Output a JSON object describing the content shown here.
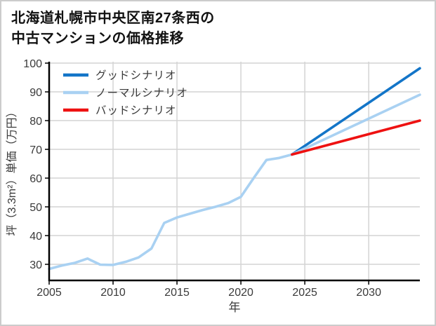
{
  "title": {
    "line1": "北海道札幌市中央区南27条西の",
    "line2": "中古マンションの価格推移"
  },
  "colors": {
    "good": "#1375c8",
    "normal": "#a9d1f2",
    "bad": "#ee1111",
    "history": "#a9d1f2",
    "grid": "#d4d4d4",
    "axis": "#000000",
    "tick_text": "#3a3a3a",
    "legend_text": "#3a3a3a",
    "title_text": "#111111"
  },
  "chart_data": {
    "type": "line",
    "title": "北海道札幌市中央区南27条西の中古マンションの価格推移",
    "xlabel": "年",
    "ylabel": "坪（3.3m²）単価（万円）",
    "xlim": [
      2005,
      2034
    ],
    "ylim": [
      24.4,
      100.5
    ],
    "xticks": [
      2005,
      2010,
      2015,
      2020,
      2025,
      2030
    ],
    "yticks": [
      30,
      40,
      50,
      60,
      70,
      80,
      90,
      100
    ],
    "grid": true,
    "legend_position": "upper-left-inside",
    "series": [
      {
        "id": "history",
        "label": null,
        "color": "#a9d1f2",
        "x": [
          2005,
          2006,
          2007,
          2008,
          2009,
          2010,
          2011,
          2012,
          2013,
          2014,
          2015,
          2016,
          2017,
          2018,
          2019,
          2020,
          2021,
          2022,
          2023,
          2024
        ],
        "values": [
          28.4,
          29.6,
          30.5,
          32.0,
          29.9,
          29.8,
          30.9,
          32.4,
          35.5,
          44.4,
          46.3,
          47.6,
          48.9,
          50.0,
          51.3,
          53.5,
          60.0,
          66.3,
          67.0,
          68.2
        ]
      },
      {
        "id": "good-scenario",
        "label": "グッドシナリオ",
        "color": "#1375c8",
        "x": [
          2024,
          2034
        ],
        "values": [
          68.2,
          98.2
        ]
      },
      {
        "id": "normal-scenario",
        "label": "ノーマルシナリオ",
        "color": "#a9d1f2",
        "x": [
          2024,
          2034
        ],
        "values": [
          68.2,
          89.0
        ]
      },
      {
        "id": "bad-scenario",
        "label": "バッドシナリオ",
        "color": "#ee1111",
        "x": [
          2024,
          2034
        ],
        "values": [
          68.2,
          80.0
        ]
      }
    ]
  }
}
